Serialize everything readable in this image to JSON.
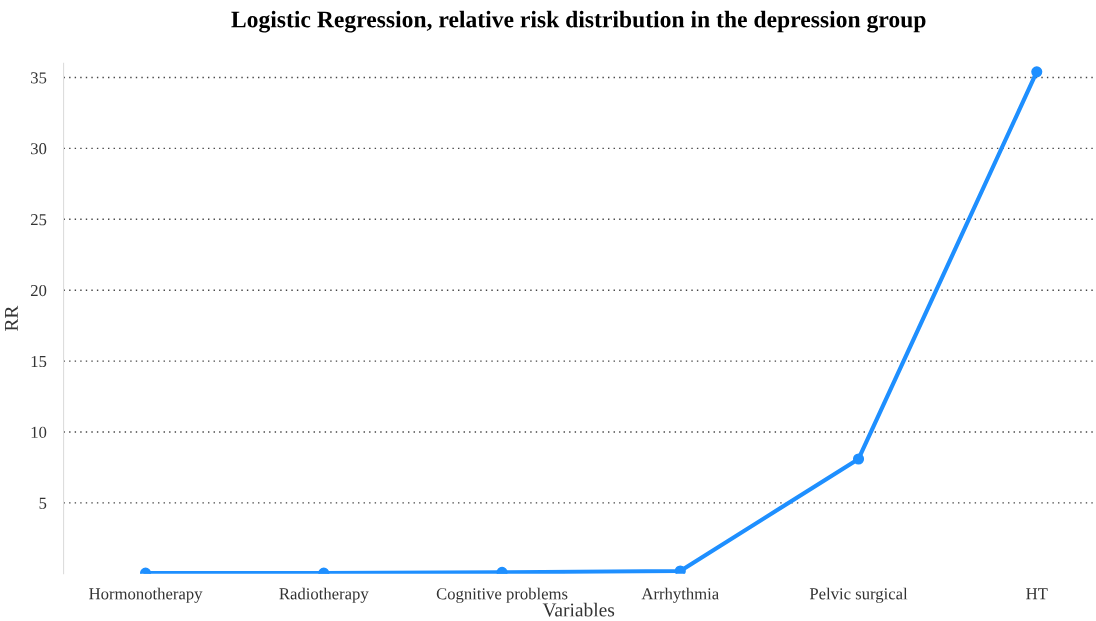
{
  "chart_data": {
    "type": "line",
    "title": "Logistic Regression, relative risk distribution in the depression group",
    "xlabel": "Variables",
    "ylabel": "RR",
    "categories": [
      "Hormonotherapy",
      "Radiotherapy",
      "Cognitive problems",
      "Arrhythmia",
      "Pelvic surgical",
      "HT"
    ],
    "series": [
      {
        "color": "#1e8fff",
        "values": [
          0.05,
          0.05,
          0.1,
          0.2,
          8.1,
          35.4
        ]
      }
    ],
    "ylim": [
      0,
      36
    ],
    "yticks": [
      5,
      10,
      15,
      20,
      25,
      30,
      35
    ],
    "grid": "y",
    "marker": "circle",
    "line_style": "solid",
    "legend": false
  }
}
